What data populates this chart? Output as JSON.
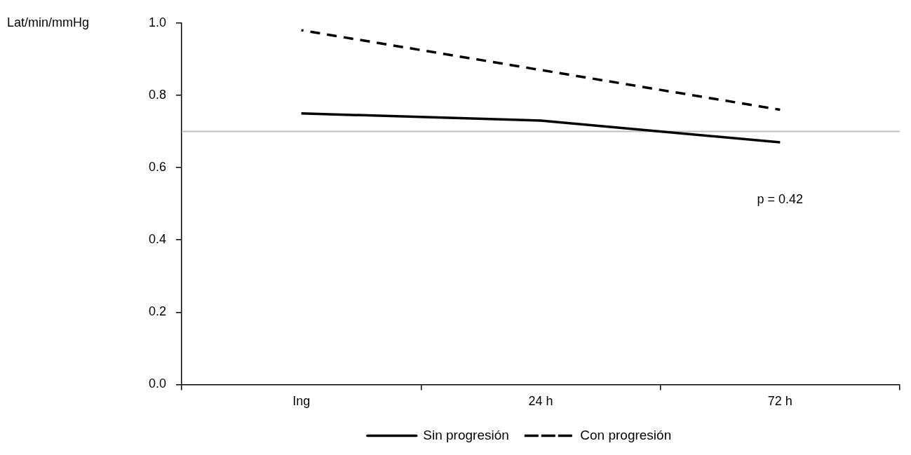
{
  "chart_data": {
    "type": "line",
    "ylabel": "Lat/min/mmHg",
    "categories": [
      "Ing",
      "24 h",
      "72 h"
    ],
    "series": [
      {
        "name": "Sin progresión",
        "color": "#000000",
        "values": [
          0.75,
          0.73,
          0.67
        ],
        "line_style": "solid"
      },
      {
        "name": "Con progresión",
        "color": "#000000",
        "values": [
          0.98,
          0.87,
          0.76
        ],
        "line_style": "dashed"
      }
    ],
    "ylim": [
      0,
      1
    ],
    "yticks": [
      {
        "value": 0,
        "label": "0.0"
      },
      0.2,
      0.4,
      0.6,
      0.8,
      {
        "value": 1,
        "label": "1.0"
      }
    ],
    "ref_lines": [
      {
        "axis": "y",
        "value": 0.7,
        "color": "#bfbfbf"
      }
    ],
    "annotations": [
      "p = 0.42"
    ],
    "grid": false,
    "legend": "bottom",
    "marker": "none"
  }
}
